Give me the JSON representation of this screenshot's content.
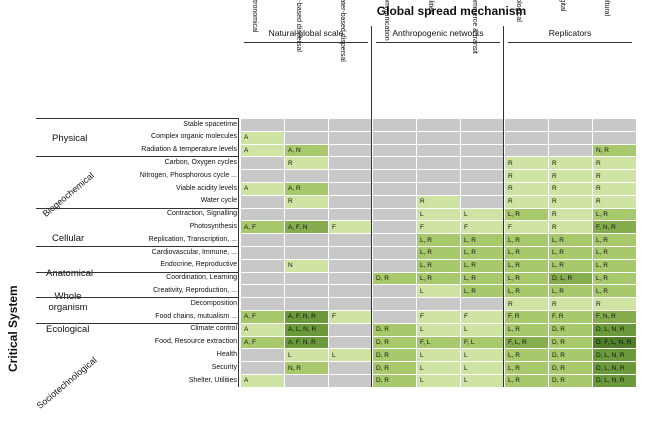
{
  "title": "Global spread mechanism",
  "y_title": "Critical System",
  "groups": [
    "Natural global scale",
    "Anthropogenic networks",
    "Replicators"
  ],
  "columns": [
    "Astronomical",
    "Air-based dispersal",
    "Water-based dispersal",
    "Communication",
    "Utilities",
    "Commerce & transit",
    "Biological",
    "Digital",
    "Cultural"
  ],
  "categories": [
    "Physical",
    "Biogeochemical",
    "Cellular",
    "Anatomical",
    "Whole organism",
    "Ecological",
    "Sociotechnological"
  ],
  "rows": [
    {
      "label": "Stable spacetime",
      "cells": [
        "",
        "",
        "",
        "",
        "",
        "",
        "",
        "",
        ""
      ]
    },
    {
      "label": "Complex organic molecules",
      "cells": [
        "A",
        "",
        "",
        "",
        "",
        "",
        "",
        "",
        ""
      ]
    },
    {
      "label": "Radiation & temperature levels",
      "cells": [
        "A",
        "A, N",
        "",
        "",
        "",
        "",
        "",
        "",
        "N, R"
      ]
    },
    {
      "label": "Carbon, Oxygen cycles",
      "cells": [
        "",
        "R",
        "",
        "",
        "",
        "",
        "R",
        "R",
        "R"
      ]
    },
    {
      "label": "Nitrogen, Phosphorous cycle ...",
      "cells": [
        "",
        "",
        "",
        "",
        "",
        "",
        "R",
        "R",
        "R"
      ]
    },
    {
      "label": "Viable acidity levels",
      "cells": [
        "A",
        "A, R",
        "",
        "",
        "",
        "",
        "R",
        "R",
        "R"
      ]
    },
    {
      "label": "Water cycle",
      "cells": [
        "",
        "R",
        "",
        "",
        "R",
        "",
        "R",
        "R",
        "R"
      ]
    },
    {
      "label": "Contraction, Signalling",
      "cells": [
        "",
        "",
        "",
        "",
        "L",
        "L",
        "L, R",
        "R",
        "L, R"
      ]
    },
    {
      "label": "Photosynthesis",
      "cells": [
        "A, F",
        "A, F, N",
        "F",
        "",
        "F",
        "F",
        "F",
        "R",
        "F, N, R"
      ]
    },
    {
      "label": "Replication, Transcription, ...",
      "cells": [
        "",
        "",
        "",
        "",
        "L, R",
        "L, R",
        "L, R",
        "L, R",
        "L, R"
      ]
    },
    {
      "label": "Cardiovascular, Immune, ...",
      "cells": [
        "",
        "",
        "",
        "",
        "L, R",
        "L, R",
        "L, R",
        "L, R",
        "L, R"
      ]
    },
    {
      "label": "Endocrine, Reproductive",
      "cells": [
        "",
        "N",
        "",
        "",
        "L, R",
        "L, R",
        "L, R",
        "L, R",
        "L, R"
      ]
    },
    {
      "label": "Coordination, Learning",
      "cells": [
        "",
        "",
        "",
        "D, R",
        "L, R",
        "L, R",
        "L, R",
        "D, L, R",
        "L, R"
      ]
    },
    {
      "label": "Creativity, Reproduction, ...",
      "cells": [
        "",
        "",
        "",
        "",
        "L",
        "L, R",
        "L, R",
        "L, R",
        "L, R"
      ]
    },
    {
      "label": "Decomposition",
      "cells": [
        "",
        "",
        "",
        "",
        "",
        "",
        "R",
        "R",
        "R"
      ]
    },
    {
      "label": "Food chains, mutualism ...",
      "cells": [
        "A, F",
        "A, F, N, R",
        "F",
        "",
        "F",
        "F",
        "F, R",
        "F, R",
        "F, N, R"
      ]
    },
    {
      "label": "Climate control",
      "cells": [
        "A",
        "A, L, N, R",
        "",
        "D, R",
        "L",
        "L",
        "L, R",
        "D, R",
        "D, L, N, R"
      ]
    },
    {
      "label": "Food, Resource extraction",
      "cells": [
        "A, F",
        "A, F, N, R",
        "",
        "D, R",
        "F, L",
        "F, L",
        "F, L, R",
        "D, R",
        "D, F, L, N, R"
      ]
    },
    {
      "label": "Health",
      "cells": [
        "",
        "L",
        "L",
        "D, R",
        "L",
        "L",
        "L, R",
        "D, R",
        "D, L, N, R"
      ]
    },
    {
      "label": "Security",
      "cells": [
        "",
        "N, R",
        "",
        "D, R",
        "L",
        "L",
        "L, R",
        "D, R",
        "D, L, N, R"
      ]
    },
    {
      "label": "Shelter, Utilities",
      "cells": [
        "A",
        "",
        "",
        "D, R",
        "L",
        "L",
        "L, R",
        "D, R",
        "D, L, N, R"
      ]
    }
  ],
  "colors": {
    "empty": "#c8c8c8",
    "level1": "#cfe3a2",
    "level2": "#a8c96b",
    "level3": "#86ad4d",
    "level4": "#6a9a3a",
    "level5": "#4f7d2a"
  }
}
